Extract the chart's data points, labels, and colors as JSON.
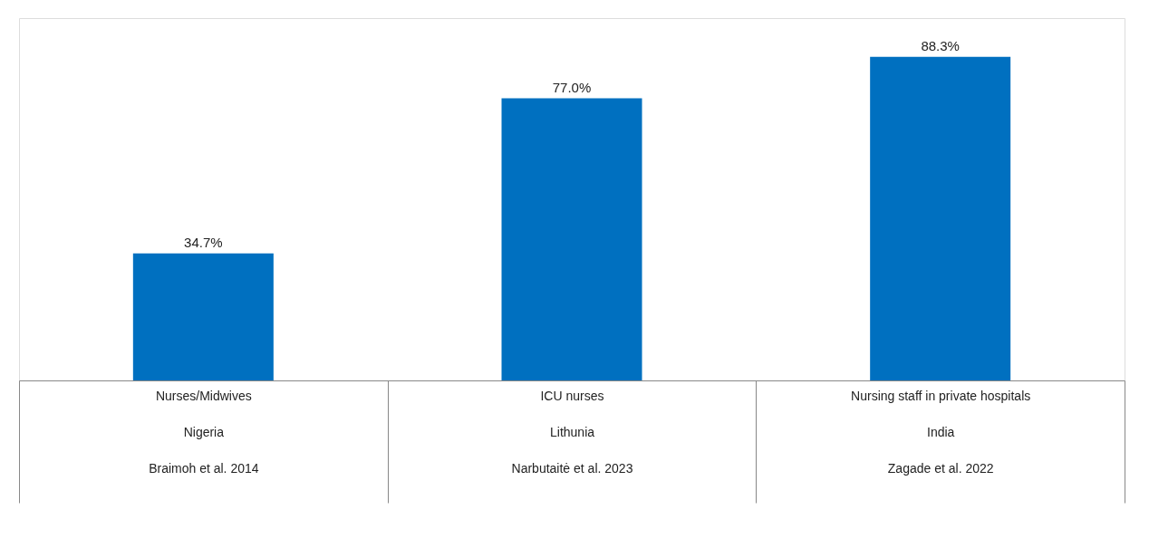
{
  "chart_data": {
    "type": "bar",
    "categories": [
      "Nurses/Midwives\nNigeria\nBraimoh et al. 2014",
      "ICU nurses\nLithunia\nNarbutaitė et al. 2023",
      "Nursing staff in private hospitals\nIndia\nZagade et al. 2022"
    ],
    "values": [
      34.7,
      77.0,
      88.3
    ],
    "value_labels": [
      "34.7%",
      "77.0%",
      "88.3%"
    ],
    "color": "#0070c0"
  }
}
